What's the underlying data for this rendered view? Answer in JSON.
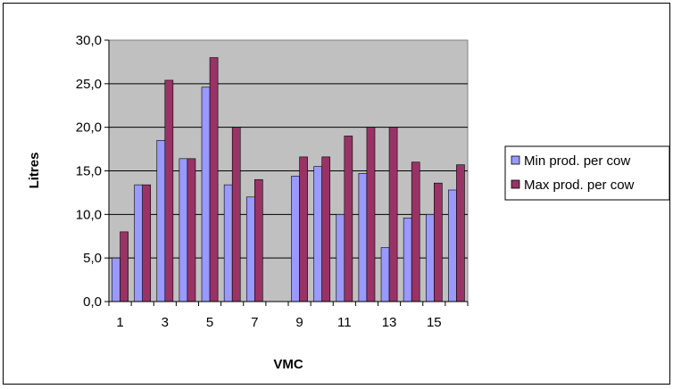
{
  "chart_data": {
    "type": "bar",
    "title": "",
    "xlabel": "VMC",
    "ylabel": "Litres",
    "categories": [
      1,
      2,
      3,
      4,
      5,
      6,
      7,
      8,
      9,
      10,
      11,
      12,
      13,
      14,
      15,
      16
    ],
    "x_tick_labels": [
      "1",
      "3",
      "5",
      "7",
      "9",
      "11",
      "13",
      "15"
    ],
    "y_tick_labels": [
      "0,0",
      "5,0",
      "10,0",
      "15,0",
      "20,0",
      "25,0",
      "30,0"
    ],
    "ylim": [
      0,
      30
    ],
    "y_major_step": 5,
    "grid": true,
    "legend_position": "right",
    "plot_background": "#c0c0c0",
    "series": [
      {
        "name": "Min prod. per cow",
        "color": "#9999ff",
        "values": [
          5.0,
          13.4,
          18.5,
          16.4,
          24.6,
          13.4,
          12.0,
          null,
          14.4,
          15.5,
          10.0,
          14.7,
          6.2,
          9.6,
          10.0,
          12.8
        ]
      },
      {
        "name": "Max prod. per cow",
        "color": "#993366",
        "values": [
          8.0,
          13.4,
          25.4,
          16.4,
          28.0,
          20.0,
          14.0,
          null,
          16.6,
          16.6,
          19.0,
          20.0,
          20.0,
          16.0,
          13.6,
          15.7
        ]
      }
    ]
  }
}
